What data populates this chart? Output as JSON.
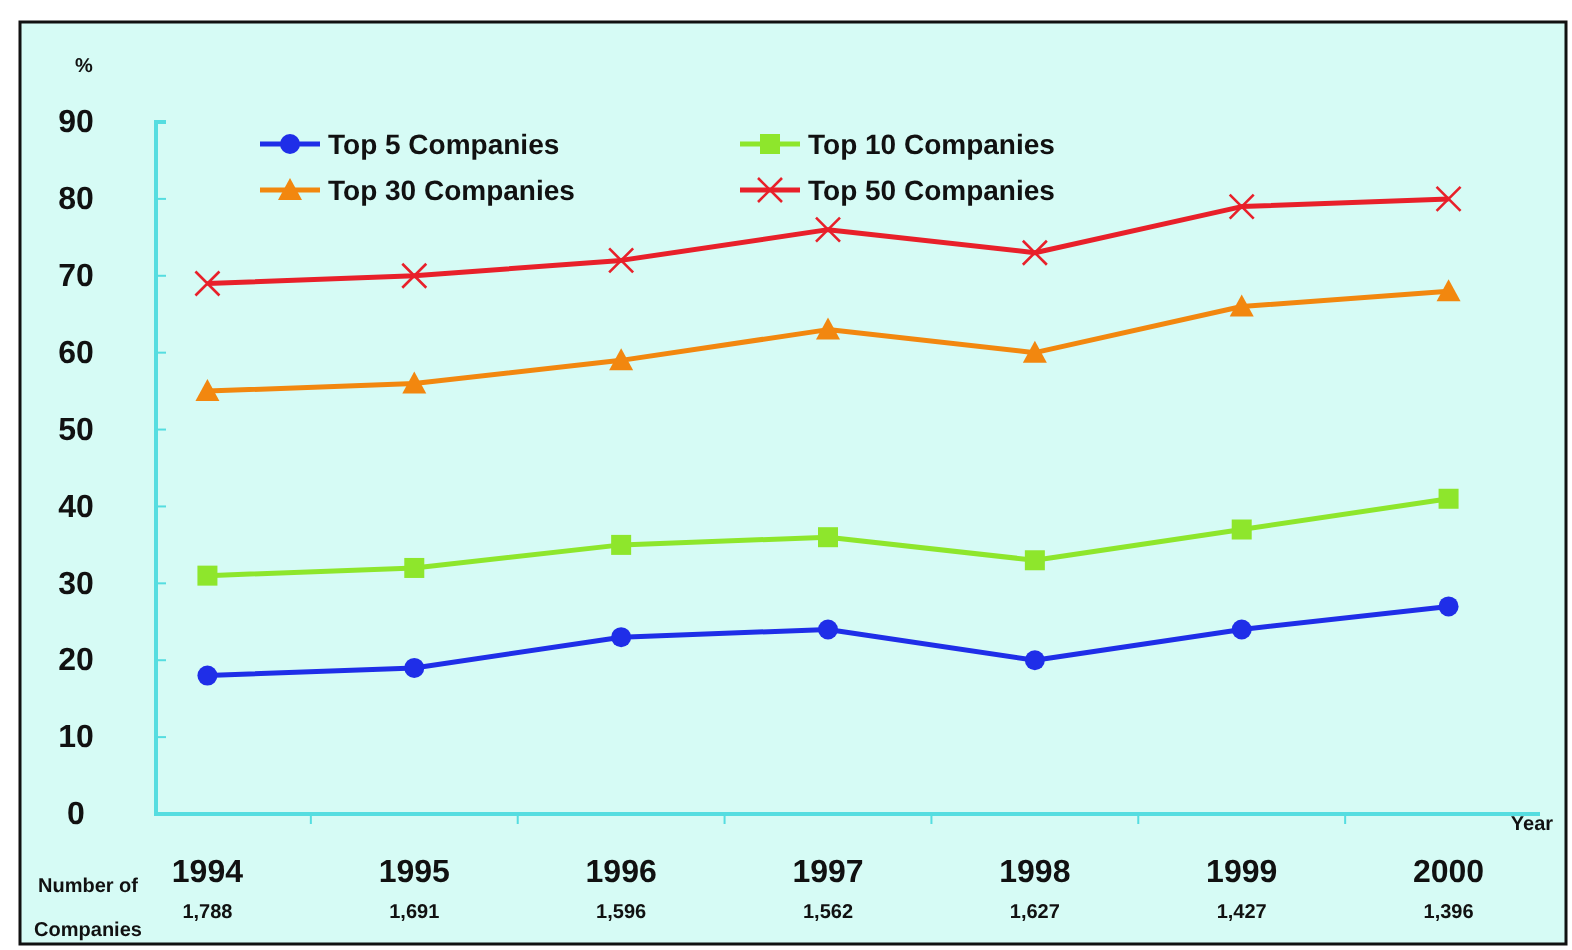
{
  "chart_data": {
    "type": "line",
    "ylabel": "%",
    "xlabel": "Year",
    "categories": [
      "1994",
      "1995",
      "1996",
      "1997",
      "1998",
      "1999",
      "2000"
    ],
    "ylim": [
      0,
      90
    ],
    "yticks": [
      0,
      10,
      20,
      30,
      40,
      50,
      60,
      70,
      80,
      90
    ],
    "legend": "top",
    "grid": false,
    "series": [
      {
        "name": "Top 5 Companies",
        "color": "#1f2ee8",
        "marker": "circle",
        "values": [
          18,
          19,
          23,
          24,
          20,
          24,
          27
        ]
      },
      {
        "name": "Top 10 Companies",
        "color": "#8ee62c",
        "marker": "square",
        "values": [
          31,
          32,
          35,
          36,
          33,
          37,
          41
        ]
      },
      {
        "name": "Top 30 Companies",
        "color": "#f2870f",
        "marker": "triangle",
        "values": [
          55,
          56,
          59,
          63,
          60,
          66,
          68
        ]
      },
      {
        "name": "Top 50 Companies",
        "color": "#e8202a",
        "marker": "cross",
        "values": [
          69,
          70,
          72,
          76,
          73,
          79,
          80
        ]
      }
    ],
    "annotations": [
      "Number of Companies",
      "1,788",
      "1,691",
      "1,596",
      "1,562",
      "1,627",
      "1,427",
      "1,396"
    ]
  }
}
